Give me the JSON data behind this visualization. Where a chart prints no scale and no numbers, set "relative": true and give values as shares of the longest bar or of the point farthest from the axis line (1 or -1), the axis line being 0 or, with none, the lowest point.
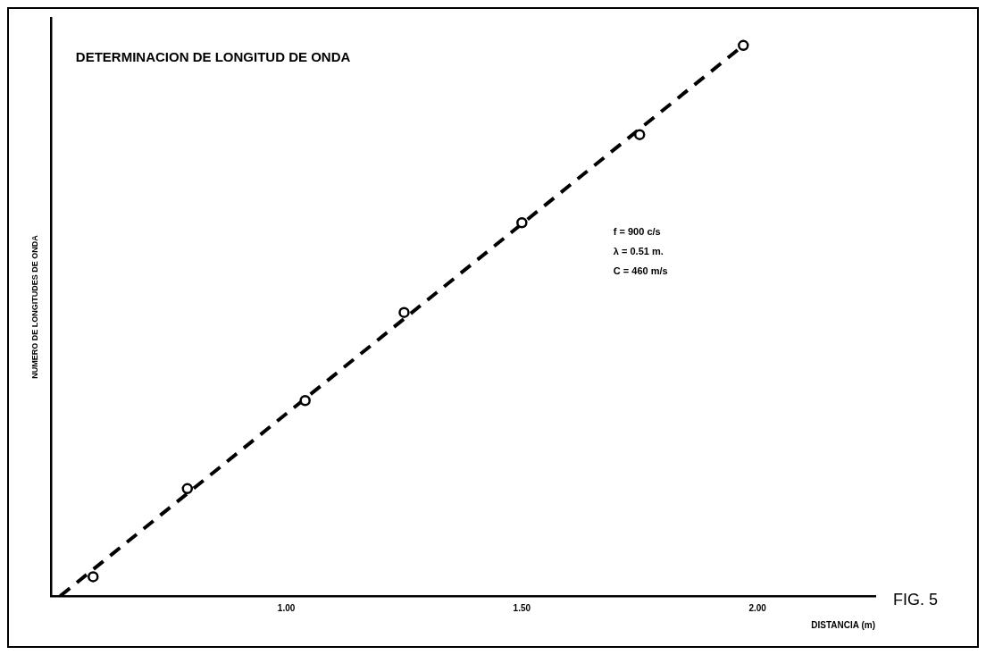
{
  "chart_data": {
    "type": "scatter",
    "title": "DETERMINACION DE LONGITUD DE ONDA",
    "xlabel": "DISTANCIA (m)",
    "ylabel": "NUMERO DE LONGITUDES DE ONDA",
    "relative": true,
    "xlim": [
      0.5,
      2.25
    ],
    "xticks": [
      {
        "value": 1,
        "label": "1.00"
      },
      {
        "value": 1.5,
        "label": "1.50"
      },
      {
        "value": 2,
        "label": "2.00"
      }
    ],
    "grid": false,
    "legend": false,
    "marker": "circle",
    "annotations": [
      "f = 900 c/s",
      "λ = 0.51 m.",
      "C = 460 m/s",
      "FIG. 5"
    ],
    "series": [
      {
        "color": "#000000",
        "x": [
          0.59,
          0.79,
          1.04,
          1.25,
          1.5,
          1.75,
          1.97
        ],
        "values": [
          0.035,
          0.195,
          0.355,
          0.515,
          0.678,
          0.838,
          1
        ]
      },
      {
        "type": "line",
        "color": "#000000",
        "line_style": "dashed",
        "marker": "none",
        "x": [
          0.52,
          1.97
        ],
        "values": [
          0,
          1
        ]
      }
    ]
  }
}
